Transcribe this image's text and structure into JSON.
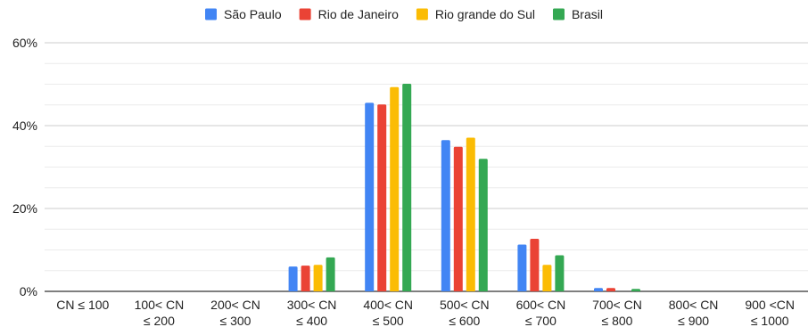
{
  "chart_data": {
    "type": "bar",
    "title": "",
    "xlabel": "",
    "ylabel": "",
    "ylim": [
      0,
      60
    ],
    "yticks": [
      0,
      20,
      40,
      60
    ],
    "ytick_labels": [
      "0%",
      "20%",
      "40%",
      "60%"
    ],
    "grid": true,
    "legend_position": "top",
    "categories": [
      [
        "CN ≤ 100"
      ],
      [
        "100< CN",
        "≤ 200"
      ],
      [
        "200< CN",
        "≤ 300"
      ],
      [
        "300< CN",
        "≤ 400"
      ],
      [
        "400< CN",
        "≤ 500"
      ],
      [
        "500< CN",
        "≤ 600"
      ],
      [
        "600< CN",
        "≤ 700"
      ],
      [
        "700< CN",
        "≤ 800"
      ],
      [
        "800< CN",
        "≤ 900"
      ],
      [
        "900 <CN",
        "≤ 1000"
      ]
    ],
    "series": [
      {
        "name": "São Paulo",
        "color": "#4285F4",
        "values": [
          0,
          0,
          0,
          6.0,
          45.5,
          36.5,
          11.3,
          0.8,
          0,
          0
        ]
      },
      {
        "name": "Rio de Janeiro",
        "color": "#EA4335",
        "values": [
          0,
          0,
          0,
          6.2,
          45.1,
          34.9,
          12.7,
          0.8,
          0,
          0
        ]
      },
      {
        "name": "Rio grande do Sul",
        "color": "#FBBC04",
        "values": [
          0,
          0,
          0,
          6.4,
          49.3,
          37.1,
          6.4,
          0,
          0,
          0
        ]
      },
      {
        "name": "Brasil",
        "color": "#34A853",
        "values": [
          0,
          0,
          0,
          8.2,
          50.1,
          32.0,
          8.7,
          0.6,
          0,
          0
        ]
      }
    ]
  }
}
